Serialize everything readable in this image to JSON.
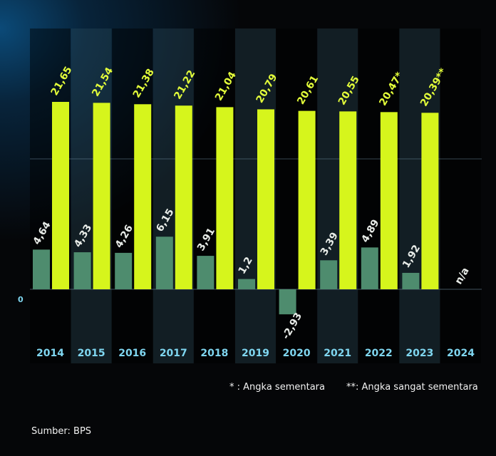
{
  "chart_data": {
    "type": "bar",
    "categories": [
      "2014",
      "2015",
      "2016",
      "2017",
      "2018",
      "2019",
      "2020",
      "2021",
      "2022",
      "2023",
      "2024"
    ],
    "series": [
      {
        "values": [
          4.64,
          4.33,
          4.26,
          6.15,
          3.91,
          1.2,
          -2.93,
          3.39,
          4.89,
          1.92,
          null
        ],
        "labels": [
          "4,64",
          "4,33",
          "4,26",
          "6,15",
          "3,91",
          "1,2",
          "-2,93",
          "3,39",
          "4,89",
          "1,92",
          "n/a"
        ],
        "color": "#4e8c6e"
      },
      {
        "values": [
          21.65,
          21.54,
          21.38,
          21.22,
          21.04,
          20.79,
          20.61,
          20.55,
          20.47,
          20.39,
          null
        ],
        "labels": [
          "21,65",
          "21,54",
          "21,38",
          "21,22",
          "21,04",
          "20,79",
          "20,61",
          "20,55",
          "20,47*",
          "20,39**",
          ""
        ],
        "color": "#d6f51c"
      }
    ],
    "zero_label": "0",
    "label_color_small": "#e8ece8",
    "label_color_large": "#e4ff3a",
    "year_color": "#7fd6f0"
  },
  "notes": {
    "provisional": "* : Angka sementara",
    "very_provisional": "**: Angka sangat sementara"
  },
  "source": "Sumber: BPS"
}
